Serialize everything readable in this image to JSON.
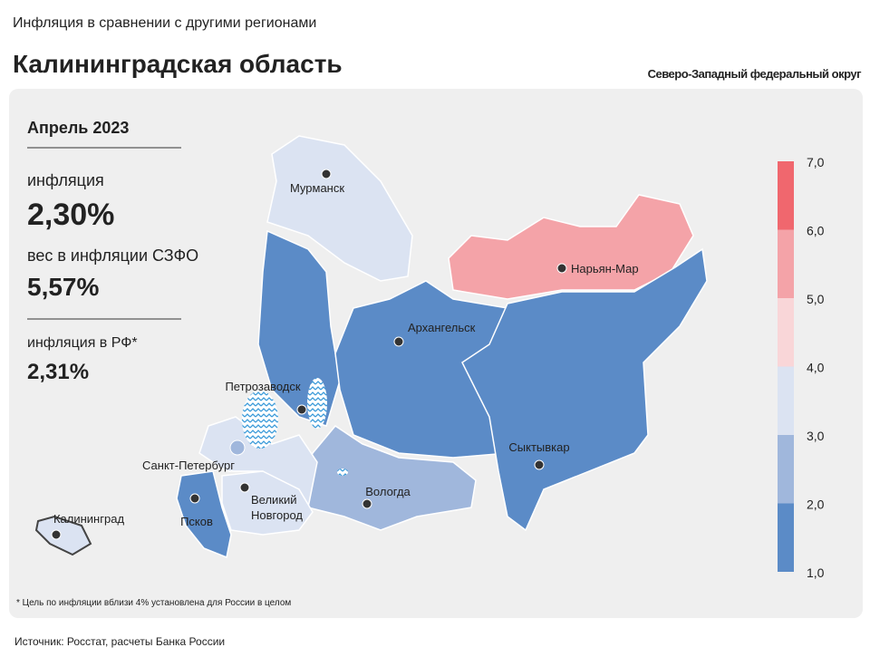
{
  "header": {
    "subtitle": "Инфляция в сравнении с другими регионами",
    "title": "Калининградская область",
    "district": "Северо-Западный федеральный округ"
  },
  "stats": {
    "period": "Апрель 2023",
    "inflation_label": "инфляция",
    "inflation_value": "2,30%",
    "weight_label": "вес в инфляции  СЗФО",
    "weight_value": "5,57%",
    "rf_label": "инфляция  в РФ*",
    "rf_value": "2,31%"
  },
  "cities": [
    "Мурманск",
    "Нарьян-Мар",
    "Архангельск",
    "Петрозаводск",
    "Сыктывкар",
    "Санкт-Петербург",
    "Вологда",
    "Великий\nНовгород",
    "Псков",
    "Калининград"
  ],
  "legend": {
    "labels": [
      "7,0",
      "6,0",
      "5,0",
      "4,0",
      "3,0",
      "2,0",
      "1,0"
    ],
    "colors": [
      "#f0676e",
      "#f4a3a8",
      "#f9d6d8",
      "#dbe3f2",
      "#a0b7dc",
      "#5b8bc7"
    ]
  },
  "footnote": "* Цель по инфляции вблизи 4% установлена для России в целом",
  "source": "Источник: Росстат, расчеты Банка России"
}
